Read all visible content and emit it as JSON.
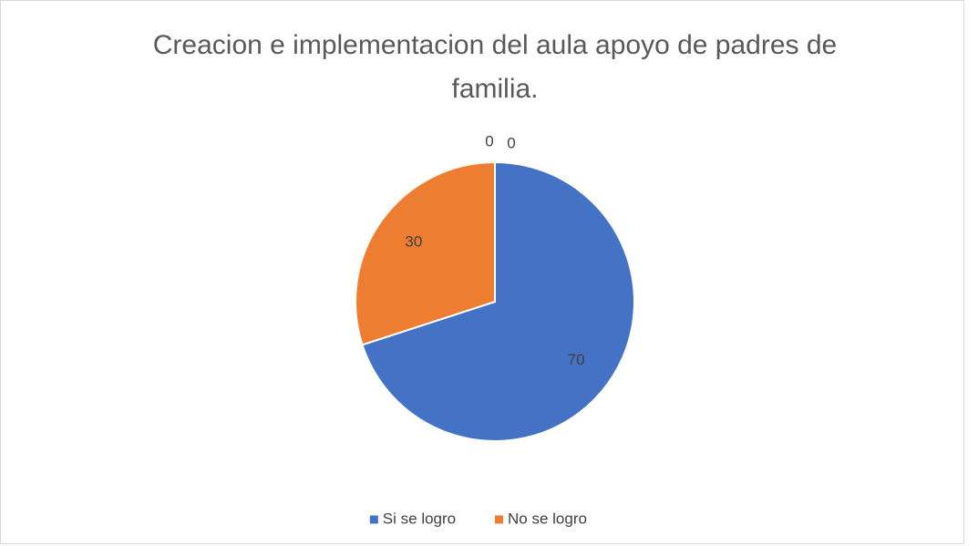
{
  "chart_data": {
    "type": "pie",
    "title": "Creacion e implementacion del aula apoyo de padres de familia.",
    "categories": [
      "Si se logro",
      "No se logro",
      null,
      null
    ],
    "values": [
      70,
      30,
      0,
      0
    ],
    "colors": [
      "#4472c4",
      "#ed7d31",
      "#a5a5a5",
      "#ffc000"
    ],
    "legend": "bottom"
  }
}
